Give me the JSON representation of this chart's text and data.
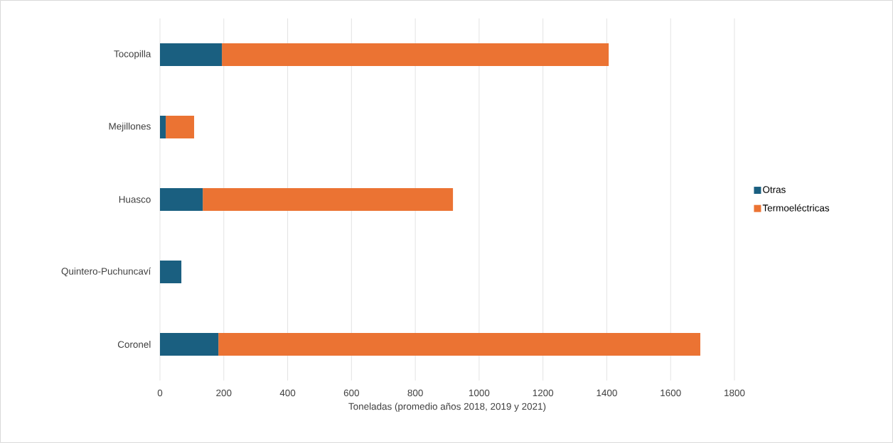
{
  "chart_data": {
    "type": "bar",
    "orientation": "horizontal",
    "stacked": true,
    "xlabel": "Toneladas (promedio años 2018, 2019 y 2021)",
    "categories": [
      "Tocopilla",
      "Mejillones",
      "Huasco",
      "Quintero-Puchuncaví",
      "Coronel"
    ],
    "series": [
      {
        "name": "Otras",
        "color": "#1a5f80",
        "values": [
          194,
          18,
          134,
          67,
          183
        ]
      },
      {
        "name": "Termoeléctricas",
        "color": "#eb7333",
        "values": [
          1212,
          89,
          784,
          0,
          1510
        ]
      }
    ],
    "xlim": [
      0,
      1800
    ],
    "xticks": [
      0,
      200,
      400,
      600,
      800,
      1000,
      1200,
      1400,
      1600,
      1800
    ],
    "grid": "x",
    "legend": "right"
  }
}
